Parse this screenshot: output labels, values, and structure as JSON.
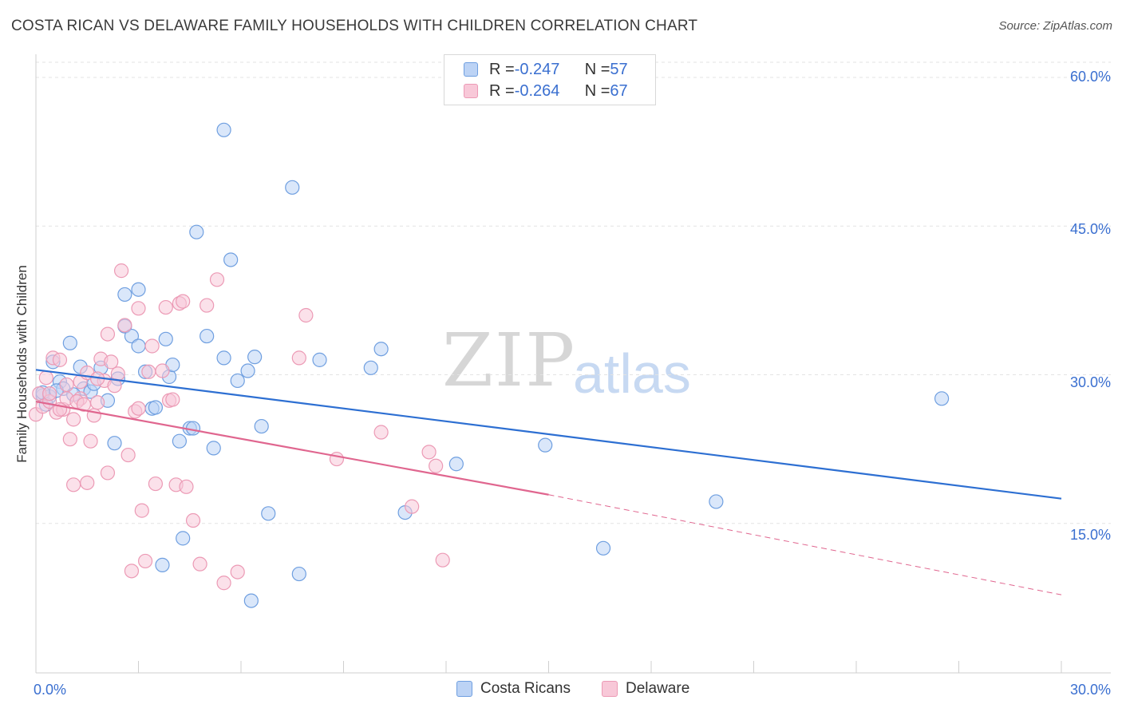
{
  "title": "COSTA RICAN VS DELAWARE FAMILY HOUSEHOLDS WITH CHILDREN CORRELATION CHART",
  "source": "Source: ZipAtlas.com",
  "watermark": {
    "zip": "ZIP",
    "atlas": "atlas"
  },
  "legend": {
    "rows": [
      {
        "r_label": "R = ",
        "r_value": "-0.247",
        "n_label": "N = ",
        "n_value": "57",
        "color": "#6f9fe0",
        "fill": "#bcd3f5"
      },
      {
        "r_label": "R = ",
        "r_value": "-0.264",
        "n_label": "N = ",
        "n_value": "67",
        "color": "#ec9ab5",
        "fill": "#f8c8d8"
      }
    ]
  },
  "bottom_legend": [
    {
      "label": "Costa Ricans",
      "color": "#6f9fe0",
      "fill": "#bcd3f5"
    },
    {
      "label": "Delaware",
      "color": "#ec9ab5",
      "fill": "#f8c8d8"
    }
  ],
  "chart_data": {
    "type": "scatter",
    "title": "COSTA RICAN VS DELAWARE FAMILY HOUSEHOLDS WITH CHILDREN CORRELATION CHART",
    "xlabel": "",
    "ylabel": "Family Households with Children",
    "xlim": [
      0,
      30
    ],
    "ylim": [
      0,
      60
    ],
    "x_tick_labels": [
      "0.0%",
      "30.0%"
    ],
    "y_ticks": [
      15,
      30,
      45,
      60
    ],
    "y_tick_labels": [
      "15.0%",
      "30.0%",
      "45.0%",
      "60.0%"
    ],
    "grid": true,
    "legend_position": "top-center",
    "series": [
      {
        "name": "Costa Ricans",
        "color": "#6f9fe0",
        "fill": "#bcd3f5",
        "points": [
          [
            0.2,
            27.9
          ],
          [
            0.4,
            27.8
          ],
          [
            0.5,
            31.3
          ],
          [
            0.7,
            29.3
          ],
          [
            0.8,
            28.6
          ],
          [
            1.0,
            33.2
          ],
          [
            1.3,
            30.8
          ],
          [
            1.4,
            28.6
          ],
          [
            1.6,
            28.3
          ],
          [
            1.7,
            29.1
          ],
          [
            1.9,
            30.7
          ],
          [
            2.1,
            27.4
          ],
          [
            2.3,
            23.1
          ],
          [
            2.4,
            29.6
          ],
          [
            2.6,
            38.1
          ],
          [
            2.6,
            34.9
          ],
          [
            2.8,
            33.9
          ],
          [
            3.0,
            32.9
          ],
          [
            3.0,
            38.6
          ],
          [
            3.2,
            30.3
          ],
          [
            3.4,
            26.6
          ],
          [
            3.5,
            26.7
          ],
          [
            3.7,
            10.8
          ],
          [
            3.8,
            33.6
          ],
          [
            3.9,
            29.8
          ],
          [
            4.0,
            31.0
          ],
          [
            4.2,
            23.3
          ],
          [
            4.3,
            13.5
          ],
          [
            4.5,
            24.6
          ],
          [
            4.6,
            24.6
          ],
          [
            4.7,
            44.4
          ],
          [
            5.0,
            33.9
          ],
          [
            5.2,
            22.6
          ],
          [
            5.5,
            31.7
          ],
          [
            5.5,
            54.7
          ],
          [
            5.7,
            41.6
          ],
          [
            5.9,
            29.4
          ],
          [
            6.2,
            30.4
          ],
          [
            6.3,
            7.2
          ],
          [
            6.4,
            31.8
          ],
          [
            6.6,
            24.8
          ],
          [
            6.8,
            16.0
          ],
          [
            7.5,
            48.9
          ],
          [
            7.7,
            9.9
          ],
          [
            8.3,
            31.5
          ],
          [
            9.8,
            30.7
          ],
          [
            10.1,
            32.6
          ],
          [
            10.8,
            16.1
          ],
          [
            12.3,
            21.0
          ],
          [
            14.9,
            22.9
          ],
          [
            16.6,
            12.5
          ],
          [
            19.9,
            17.2
          ],
          [
            26.5,
            27.6
          ],
          [
            0.2,
            28.2
          ],
          [
            0.6,
            28.4
          ],
          [
            1.1,
            28.0
          ],
          [
            0.3,
            27.0
          ]
        ]
      },
      {
        "name": "Delaware",
        "color": "#ec9ab5",
        "fill": "#f8c8d8",
        "points": [
          [
            0.0,
            26.0
          ],
          [
            0.1,
            28.1
          ],
          [
            0.2,
            26.8
          ],
          [
            0.3,
            29.7
          ],
          [
            0.4,
            27.3
          ],
          [
            0.5,
            31.7
          ],
          [
            0.6,
            26.2
          ],
          [
            0.7,
            31.5
          ],
          [
            0.8,
            26.5
          ],
          [
            0.9,
            27.6
          ],
          [
            1.0,
            23.5
          ],
          [
            1.1,
            25.5
          ],
          [
            1.1,
            18.9
          ],
          [
            1.3,
            27.6
          ],
          [
            1.3,
            29.3
          ],
          [
            1.5,
            30.2
          ],
          [
            1.5,
            19.1
          ],
          [
            1.6,
            23.3
          ],
          [
            1.7,
            25.9
          ],
          [
            1.8,
            27.2
          ],
          [
            1.9,
            31.6
          ],
          [
            2.0,
            29.4
          ],
          [
            2.1,
            34.1
          ],
          [
            2.1,
            20.1
          ],
          [
            2.3,
            28.9
          ],
          [
            2.4,
            30.1
          ],
          [
            2.5,
            40.5
          ],
          [
            2.6,
            35.0
          ],
          [
            2.7,
            21.9
          ],
          [
            2.8,
            10.2
          ],
          [
            2.9,
            26.3
          ],
          [
            3.0,
            36.7
          ],
          [
            3.0,
            26.6
          ],
          [
            3.1,
            16.3
          ],
          [
            3.2,
            11.2
          ],
          [
            3.3,
            30.3
          ],
          [
            3.4,
            32.9
          ],
          [
            3.5,
            19.0
          ],
          [
            3.7,
            30.4
          ],
          [
            3.8,
            36.8
          ],
          [
            3.9,
            27.4
          ],
          [
            4.0,
            27.5
          ],
          [
            4.1,
            18.9
          ],
          [
            4.2,
            37.2
          ],
          [
            4.3,
            37.4
          ],
          [
            4.4,
            18.7
          ],
          [
            4.6,
            15.3
          ],
          [
            4.8,
            10.9
          ],
          [
            5.0,
            37.0
          ],
          [
            5.3,
            39.6
          ],
          [
            5.5,
            9.0
          ],
          [
            5.9,
            10.1
          ],
          [
            7.7,
            31.7
          ],
          [
            7.9,
            36.0
          ],
          [
            8.8,
            21.5
          ],
          [
            10.1,
            24.2
          ],
          [
            11.0,
            16.7
          ],
          [
            11.5,
            22.2
          ],
          [
            11.7,
            20.8
          ],
          [
            11.9,
            11.3
          ],
          [
            0.4,
            28.1
          ],
          [
            0.7,
            26.5
          ],
          [
            1.2,
            27.3
          ],
          [
            1.8,
            29.6
          ],
          [
            2.2,
            31.3
          ],
          [
            0.9,
            29.0
          ],
          [
            1.4,
            27.0
          ]
        ]
      }
    ],
    "trend_lines": [
      {
        "series": "Costa Ricans",
        "x": [
          0,
          30
        ],
        "y": [
          30.5,
          17.5
        ],
        "style": "solid"
      },
      {
        "series": "Delaware",
        "x": [
          0,
          15
        ],
        "y": [
          27.3,
          17.9
        ],
        "style": "solid"
      },
      {
        "series": "Delaware",
        "x": [
          15,
          30
        ],
        "y": [
          17.9,
          7.8
        ],
        "style": "dashed"
      }
    ]
  }
}
